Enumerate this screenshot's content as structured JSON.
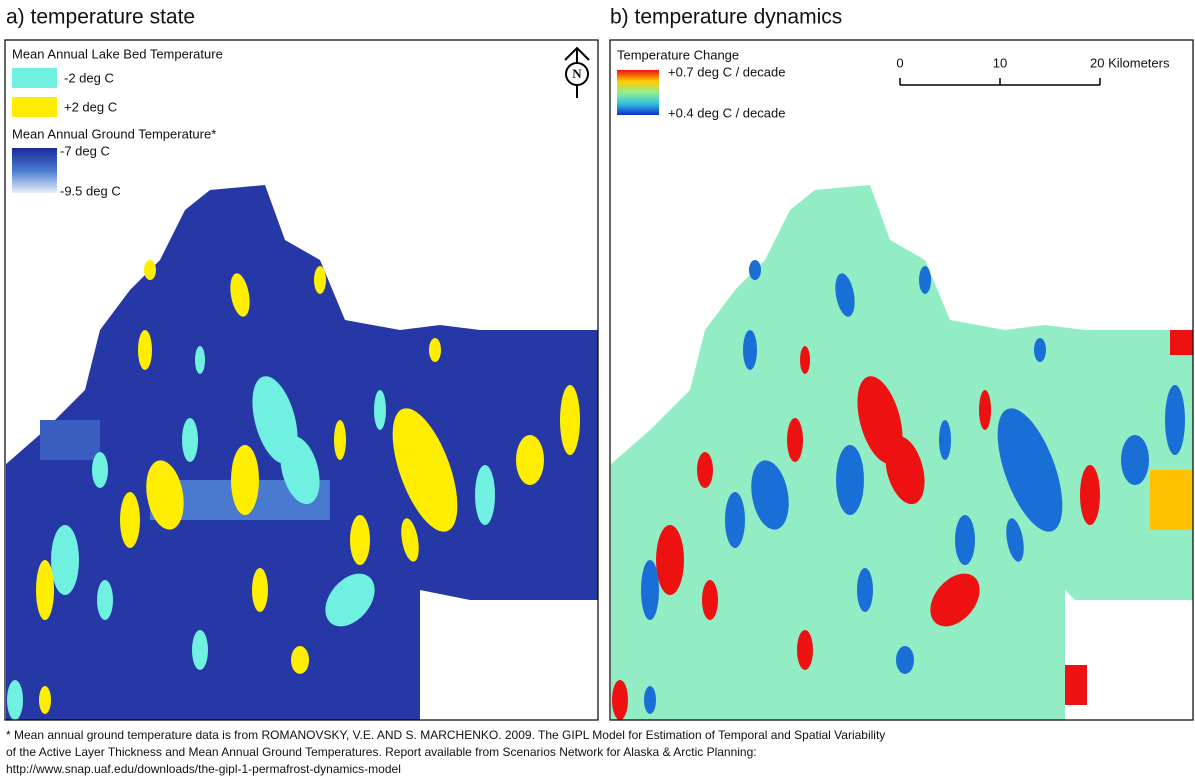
{
  "panels": [
    {
      "title": "a) temperature state",
      "north_arrow": "N",
      "legend": [
        {
          "title": "Mean Annual Lake Bed Temperature",
          "items": [
            "-2 deg C",
            "+2 deg C"
          ]
        },
        {
          "title": "Mean Annual Ground Temperature*",
          "items": [
            "-7 deg C",
            "-9.5 deg C"
          ]
        }
      ]
    },
    {
      "title": "b) temperature dynamics",
      "legend": [
        {
          "title": "Temperature Change",
          "items": [
            "+0.7 deg C / decade",
            "+0.4 deg C / decade"
          ]
        }
      ],
      "scale_bar": [
        "0",
        "10",
        "20 Kilometers"
      ]
    }
  ],
  "footnote": [
    "* Mean annual ground temperature data is from ROMANOVSKY, V.E. AND S. MARCHENKO.  2009.  The GIPL Model for Estimation of Temporal and Spatial Variability",
    "of the Active Layer Thickness and Mean Annual Ground Temperatures. Report available from Scenarios Network for Alaska & Arctic Planning:",
    "http://www.snap.uaf.edu/downloads/the-gipl-1-permafrost-dynamics-model"
  ]
}
